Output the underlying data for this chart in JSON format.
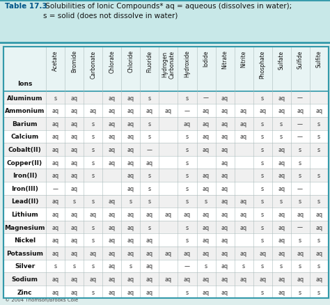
{
  "title_bold": "Table 17.3",
  "title_rest": " Solubilities of Ionic Compounds* aq = aqueous (dissolves in water);\ns = solid (does not dissolve in water)",
  "border_color": "#3399aa",
  "title_bg": "#c8e8e8",
  "title_color": "#005588",
  "columns": [
    "Ions",
    "Acetate",
    "Bromide",
    "Carbonate",
    "Chlorate",
    "Chloride",
    "Fluoride",
    "Hydrogen\nCarbonate",
    "Hydroxide",
    "Iodide",
    "Nitrate",
    "Nitrite",
    "Phosphate",
    "Sulfate",
    "Sulfide",
    "Sulfite"
  ],
  "rows": [
    [
      "Aluminum",
      "s",
      "aq",
      "",
      "aq",
      "aq",
      "s",
      "",
      "s",
      "—",
      "aq",
      "",
      "s",
      "aq",
      "—",
      ""
    ],
    [
      "Ammonium",
      "aq",
      "aq",
      "aq",
      "aq",
      "aq",
      "aq",
      "aq",
      "—",
      "aq",
      "aq",
      "aq",
      "aq",
      "aq",
      "aq",
      "aq"
    ],
    [
      "Barium",
      "aq",
      "aq",
      "s",
      "aq",
      "aq",
      "s",
      "",
      "aq",
      "aq",
      "aq",
      "aq",
      "s",
      "s",
      "—",
      "s"
    ],
    [
      "Calcium",
      "aq",
      "aq",
      "s",
      "aq",
      "aq",
      "s",
      "",
      "s",
      "aq",
      "aq",
      "aq",
      "s",
      "s",
      "—",
      "s"
    ],
    [
      "Cobalt(II)",
      "aq",
      "aq",
      "s",
      "aq",
      "aq",
      "—",
      "",
      "s",
      "aq",
      "aq",
      "",
      "s",
      "aq",
      "s",
      "s"
    ],
    [
      "Copper(II)",
      "aq",
      "aq",
      "s",
      "aq",
      "aq",
      "aq",
      "",
      "s",
      "",
      "aq",
      "",
      "s",
      "aq",
      "s",
      ""
    ],
    [
      "Iron(II)",
      "aq",
      "aq",
      "s",
      "",
      "aq",
      "s",
      "",
      "s",
      "aq",
      "aq",
      "",
      "s",
      "aq",
      "s",
      "s"
    ],
    [
      "Iron(III)",
      "—",
      "aq",
      "",
      "",
      "aq",
      "s",
      "",
      "s",
      "aq",
      "aq",
      "",
      "s",
      "aq",
      "—",
      ""
    ],
    [
      "Lead(II)",
      "aq",
      "s",
      "s",
      "aq",
      "s",
      "s",
      "",
      "s",
      "s",
      "aq",
      "aq",
      "s",
      "s",
      "s",
      "s"
    ],
    [
      "Lithium",
      "aq",
      "aq",
      "aq",
      "aq",
      "aq",
      "aq",
      "aq",
      "aq",
      "aq",
      "aq",
      "aq",
      "s",
      "aq",
      "aq",
      "aq"
    ],
    [
      "Magnesium",
      "aq",
      "aq",
      "s",
      "aq",
      "aq",
      "s",
      "",
      "s",
      "aq",
      "aq",
      "aq",
      "s",
      "aq",
      "—",
      "aq"
    ],
    [
      "Nickel",
      "aq",
      "aq",
      "s",
      "aq",
      "aq",
      "aq",
      "",
      "s",
      "aq",
      "aq",
      "",
      "s",
      "aq",
      "s",
      "s"
    ],
    [
      "Potassium",
      "aq",
      "aq",
      "aq",
      "aq",
      "aq",
      "aq",
      "aq",
      "aq",
      "aq",
      "aq",
      "aq",
      "aq",
      "aq",
      "aq",
      "aq"
    ],
    [
      "Silver",
      "s",
      "s",
      "s",
      "aq",
      "s",
      "aq",
      "",
      "—",
      "s",
      "aq",
      "s",
      "s",
      "s",
      "s",
      "s"
    ],
    [
      "Sodium",
      "aq",
      "aq",
      "aq",
      "aq",
      "aq",
      "aq",
      "aq",
      "aq",
      "aq",
      "aq",
      "aq",
      "aq",
      "aq",
      "aq",
      "aq"
    ],
    [
      "Zinc",
      "aq",
      "aq",
      "s",
      "aq",
      "aq",
      "aq",
      "",
      "s",
      "aq",
      "aq",
      "",
      "s",
      "aq",
      "s",
      "s"
    ]
  ],
  "footer": "© 2004 Thomson/Brooks Cole",
  "fig_bg": "#ddeeed",
  "header_bg": "#e8f4f4",
  "row_bg_odd": "#f0f0f0",
  "row_bg_even": "#ffffff",
  "sep_line_color": "#aabbbb",
  "thick_line_color": "#3399aa"
}
